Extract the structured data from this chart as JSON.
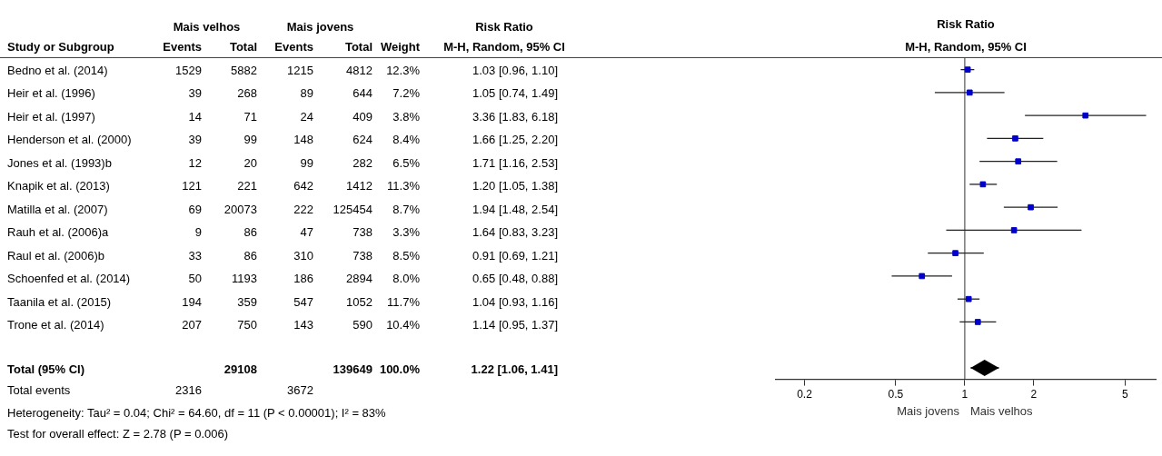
{
  "chart_data": [
    {
      "type": "other",
      "ylabel": "Study or Subgroup",
      "data_labels": true,
      "categories": [
        "Bedno et al. (2014)",
        "Heir et al. (1996)",
        "Heir et al. (1997)",
        "Henderson et al. (2000)",
        "Jones et al. (1993)b",
        "Knapik et al. (2013)",
        "Matilla et al. (2007)",
        "Rauh et al. (2006)a",
        "Raul et al. (2006)b",
        "Schoenfed et al. (2014)",
        "Taanila et al. (2015)",
        "Trone et al. (2014)",
        "Total (95% CI)",
        "Total events"
      ],
      "series": [
        {
          "name": "Events",
          "values": [
            1529,
            39,
            14,
            39,
            12,
            121,
            69,
            9,
            33,
            50,
            194,
            207,
            null,
            2316
          ]
        },
        {
          "name": "Total",
          "values": [
            5882,
            268,
            71,
            99,
            20,
            221,
            20073,
            86,
            86,
            1193,
            359,
            750,
            29108,
            null
          ]
        },
        {
          "name": "Events",
          "values": [
            1215,
            89,
            24,
            148,
            99,
            642,
            222,
            47,
            310,
            186,
            547,
            143,
            null,
            3672
          ]
        },
        {
          "name": "Total",
          "values": [
            4812,
            644,
            409,
            624,
            282,
            1412,
            125454,
            738,
            738,
            2894,
            1052,
            590,
            139649,
            null
          ]
        },
        {
          "name": "Weight",
          "values": [
            12.3,
            7.2,
            3.8,
            8.4,
            6.5,
            11.3,
            8.7,
            3.3,
            8.5,
            8.0,
            11.7,
            10.4,
            100.0,
            null
          ],
          "value_labels": [
            "12.3%",
            "7.2%",
            "3.8%",
            "8.4%",
            "6.5%",
            "11.3%",
            "8.7%",
            "3.3%",
            "8.5%",
            "8.0%",
            "11.7%",
            "10.4%",
            "100.0%",
            null
          ]
        },
        {
          "name": "M-H, Random, 95% CI",
          "values": [
            1.03,
            1.05,
            3.36,
            1.66,
            1.71,
            1.2,
            1.94,
            1.64,
            0.91,
            0.65,
            1.04,
            1.14,
            1.22,
            null
          ],
          "value_labels": [
            "1.03 [0.96, 1.10]",
            "1.05 [0.74, 1.49]",
            "3.36 [1.83, 6.18]",
            "1.66 [1.25, 2.20]",
            "1.71 [1.16, 2.53]",
            "1.20 [1.05, 1.38]",
            "1.94 [1.48, 2.54]",
            "1.64 [0.83, 3.23]",
            "0.91 [0.69, 1.21]",
            "0.65 [0.48, 0.88]",
            "1.04 [0.93, 1.16]",
            "1.14 [0.95, 1.37]",
            "1.22 [1.06, 1.41]",
            null
          ]
        }
      ],
      "annotations": [
        "Mais velhos",
        "Mais jovens",
        "Risk Ratio",
        "Heterogeneity: Tau² = 0.04; Chi² = 64.60, df = 11 (P < 0.00001); I² = 83%",
        "Test for overall effect: Z = 2.78 (P = 0.006)"
      ]
    },
    {
      "type": "scatter",
      "title": "Risk Ratio",
      "subtitle": "M-H, Random, 95% CI",
      "categories": [
        null,
        null,
        null,
        null,
        null,
        null,
        null,
        null,
        null,
        null,
        null,
        null,
        null,
        null
      ],
      "orientation": "horizontal",
      "log": "x",
      "xlim": [
        0.15,
        6.8
      ],
      "xticks": [
        0.2,
        0.5,
        1,
        2,
        5
      ],
      "grid": false,
      "ref_lines": [
        {
          "axis": "x",
          "value": 1
        }
      ],
      "annotations": [
        "Mais jovens",
        "Mais velhos"
      ],
      "series": [
        {
          "color": "#0000cc",
          "marker": "square",
          "values": [
            1.03,
            1.05,
            3.36,
            1.66,
            1.71,
            1.2,
            1.94,
            1.64,
            0.91,
            0.65,
            1.04,
            1.14,
            null,
            null
          ],
          "errors": [
            [
              0.96,
              1.1
            ],
            [
              0.74,
              1.49
            ],
            [
              1.83,
              6.18
            ],
            [
              1.25,
              2.2
            ],
            [
              1.16,
              2.53
            ],
            [
              1.05,
              1.38
            ],
            [
              1.48,
              2.54
            ],
            [
              0.83,
              3.23
            ],
            [
              0.69,
              1.21
            ],
            [
              0.48,
              0.88
            ],
            [
              0.93,
              1.16
            ],
            [
              0.95,
              1.37
            ],
            null,
            null
          ]
        },
        {
          "color": "#000000",
          "marker": "diamond",
          "values": [
            null,
            null,
            null,
            null,
            null,
            null,
            null,
            null,
            null,
            null,
            null,
            null,
            null,
            1.22
          ],
          "errors": [
            null,
            null,
            null,
            null,
            null,
            null,
            null,
            null,
            null,
            null,
            null,
            null,
            null,
            [
              1.06,
              1.41
            ]
          ]
        }
      ]
    }
  ]
}
